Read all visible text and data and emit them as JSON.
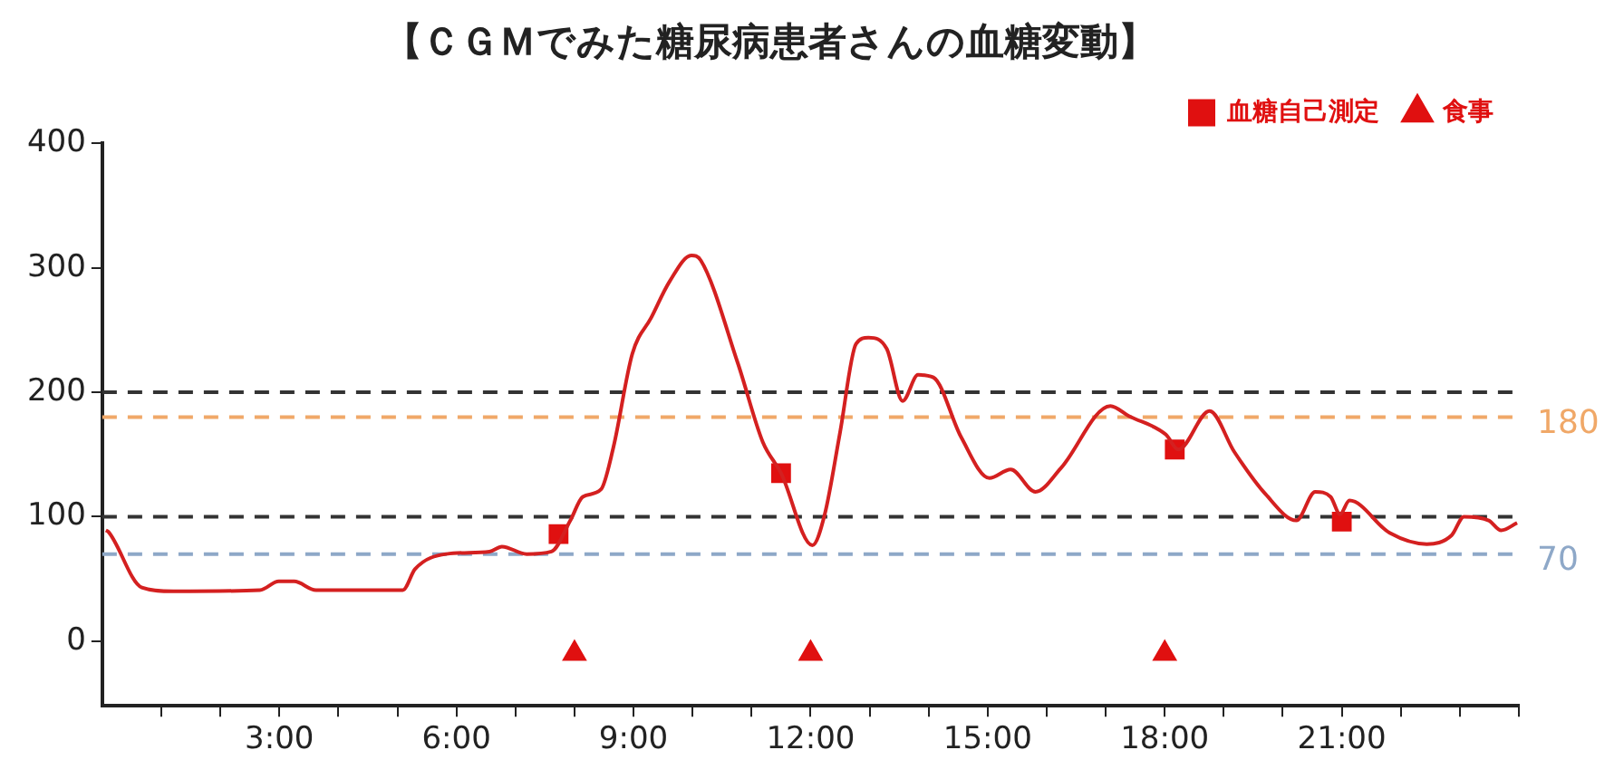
{
  "chart_data": {
    "type": "line",
    "title": "【ＣＧＭでみた糖尿病患者さんの血糖変動】",
    "xlim": [
      0,
      24
    ],
    "xticks": [
      {
        "value": 1,
        "label": null
      },
      {
        "value": 2,
        "label": null
      },
      {
        "value": 3,
        "label": "3:00"
      },
      {
        "value": 4,
        "label": null
      },
      {
        "value": 5,
        "label": null
      },
      {
        "value": 6,
        "label": "6:00"
      },
      {
        "value": 7,
        "label": null
      },
      {
        "value": 8,
        "label": null
      },
      {
        "value": 9,
        "label": "9:00"
      },
      {
        "value": 10,
        "label": null
      },
      {
        "value": 11,
        "label": null
      },
      {
        "value": 12,
        "label": "12:00"
      },
      {
        "value": 13,
        "label": null
      },
      {
        "value": 14,
        "label": null
      },
      {
        "value": 15,
        "label": "15:00"
      },
      {
        "value": 16,
        "label": null
      },
      {
        "value": 17,
        "label": null
      },
      {
        "value": 18,
        "label": "18:00"
      },
      {
        "value": 19,
        "label": null
      },
      {
        "value": 20,
        "label": null
      },
      {
        "value": 21,
        "label": "21:00"
      },
      {
        "value": 22,
        "label": null
      },
      {
        "value": 23,
        "label": null
      },
      {
        "value": 24,
        "label": null
      }
    ],
    "ylim": [
      -52,
      400
    ],
    "yticks": [
      0,
      100,
      200,
      300,
      400
    ],
    "grid": false,
    "legend": "top right",
    "series": [
      {
        "color": "#d42020",
        "marker": "none",
        "x": [
          0.06,
          0.1,
          0.67,
          1.2,
          2.67,
          2.99,
          3.25,
          3.62,
          5.09,
          5.3,
          5.83,
          6.56,
          6.77,
          7.19,
          7.61,
          7.93,
          8.14,
          8.45,
          8.66,
          8.98,
          9.3,
          9.61,
          9.98,
          10.14,
          10.77,
          11.19,
          11.5,
          12.03,
          12.24,
          12.5,
          12.77,
          12.98,
          13.29,
          13.56,
          13.82,
          14.08,
          14.55,
          15.03,
          15.39,
          15.81,
          16.24,
          17.08,
          17.39,
          18.02,
          18.23,
          18.76,
          19.18,
          19.71,
          20.23,
          20.55,
          20.81,
          20.97,
          21.13,
          21.81,
          22.44,
          22.86,
          23.07,
          23.49,
          23.7,
          23.97
        ],
        "values": [
          89,
          88,
          43,
          40,
          41,
          48,
          48,
          41,
          41,
          58,
          70,
          72,
          76,
          70,
          72,
          97,
          116,
          122,
          156,
          231,
          260,
          289,
          310,
          306,
          223,
          160,
          135,
          77,
          102,
          168,
          239,
          244,
          235,
          193,
          214,
          212,
          164,
          131,
          138,
          120,
          139,
          189,
          181,
          166,
          154,
          185,
          152,
          118,
          97,
          120,
          116,
          102,
          113,
          87,
          78,
          85,
          100,
          97,
          89,
          95
        ]
      },
      {
        "type": "scatter",
        "name": "血糖自己測定",
        "color": "#e01010",
        "marker": "square",
        "x": [
          7.73,
          11.5,
          18.17,
          21.0
        ],
        "values": [
          86,
          135,
          154,
          96
        ]
      },
      {
        "type": "scatter",
        "name": "食事",
        "color": "#e01010",
        "marker": "triangle",
        "x": [
          8.0,
          12.0,
          18.0
        ],
        "values": [
          -10,
          -10,
          -10
        ]
      }
    ],
    "ref_lines": [
      {
        "axis": "y",
        "value": 200,
        "label": null,
        "color": "#333333",
        "line_style": "dashed"
      },
      {
        "axis": "y",
        "value": 180,
        "label": "180",
        "color": "#f0a868",
        "line_style": "dashed"
      },
      {
        "axis": "y",
        "value": 100,
        "label": null,
        "color": "#333333",
        "line_style": "dashed"
      },
      {
        "axis": "y",
        "value": 70,
        "label": "70",
        "color": "#8ea8c8",
        "line_style": "dashed"
      }
    ]
  }
}
